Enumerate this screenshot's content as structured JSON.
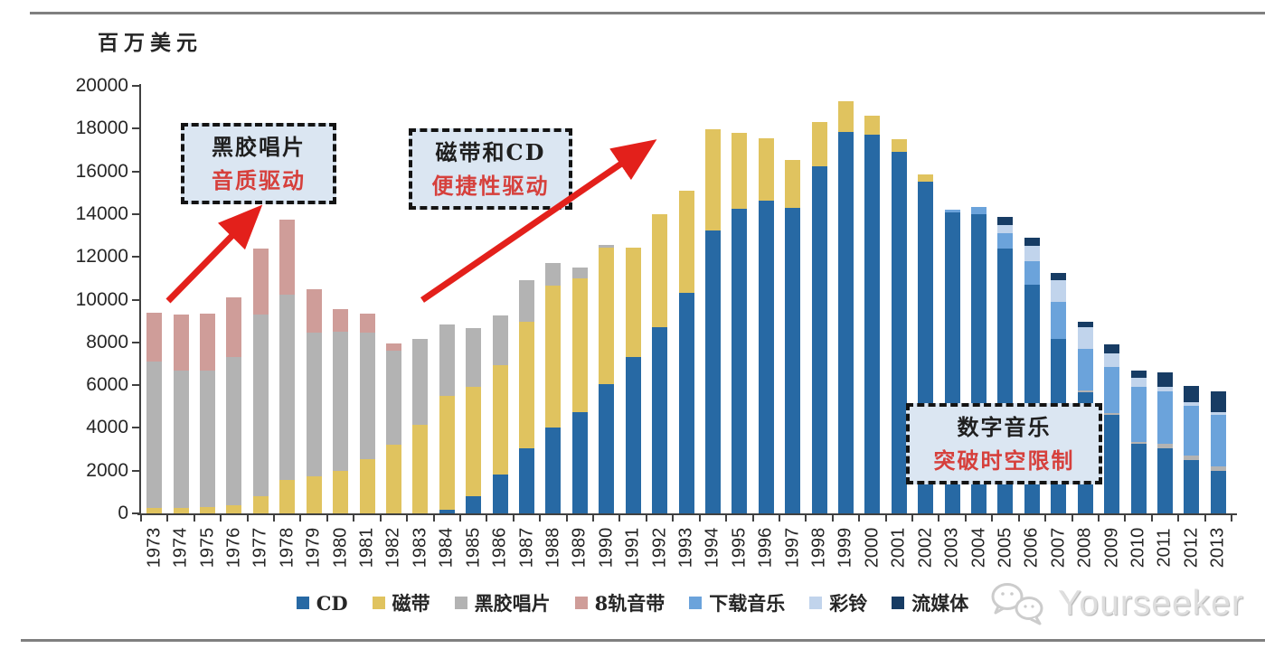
{
  "unit_label": "百万美元",
  "watermark": {
    "text": "Yourseeker"
  },
  "annotations": [
    {
      "line1": "黑胶唱片",
      "line2": "音质驱动"
    },
    {
      "line1": "磁带和CD",
      "line2": "便捷性驱动"
    },
    {
      "line1": "数字音乐",
      "line2": "突破时空限制"
    }
  ],
  "colors": {
    "axis": "#404040",
    "callout_bg": "#dbe6f2",
    "callout_red": "#d6403c",
    "arrow_red": "#e3201b"
  },
  "chart_data": {
    "type": "bar",
    "stacked": true,
    "title": "",
    "xlabel": "",
    "ylabel": "百万美元",
    "ylim": [
      0,
      20000
    ],
    "ytick_step": 2000,
    "grid": false,
    "legend_position": "bottom",
    "categories": [
      "1973",
      "1974",
      "1975",
      "1976",
      "1977",
      "1978",
      "1979",
      "1980",
      "1981",
      "1982",
      "1983",
      "1984",
      "1985",
      "1986",
      "1987",
      "1988",
      "1989",
      "1990",
      "1991",
      "1992",
      "1993",
      "1994",
      "1995",
      "1996",
      "1997",
      "1998",
      "1999",
      "2000",
      "2001",
      "2002",
      "2003",
      "2004",
      "2005",
      "2006",
      "2007",
      "2008",
      "2009",
      "2010",
      "2011",
      "2012",
      "2013"
    ],
    "series": [
      {
        "name": "CD",
        "color": "#2769a4",
        "values": [
          0,
          0,
          0,
          0,
          0,
          0,
          0,
          0,
          0,
          0,
          0,
          150,
          800,
          1800,
          3050,
          4000,
          4750,
          6050,
          7300,
          8700,
          10300,
          13250,
          14250,
          14650,
          14300,
          16250,
          17850,
          17700,
          16900,
          15500,
          14100,
          14000,
          12400,
          10700,
          8150,
          5650,
          4600,
          3250,
          3050,
          2500,
          2000
        ]
      },
      {
        "name": "磁带",
        "color": "#e0c35f",
        "values": [
          250,
          250,
          300,
          400,
          800,
          1550,
          1750,
          2000,
          2550,
          3200,
          4150,
          5350,
          5100,
          5150,
          5900,
          6650,
          6250,
          6400,
          5150,
          5300,
          4800,
          4700,
          3550,
          2900,
          2250,
          2050,
          1450,
          900,
          600,
          350,
          0,
          0,
          0,
          0,
          0,
          0,
          0,
          0,
          0,
          0,
          0
        ]
      },
      {
        "name": "黑胶唱片",
        "color": "#b3b3b3",
        "values": [
          6850,
          6450,
          6400,
          6900,
          8500,
          8700,
          6700,
          6500,
          5900,
          4400,
          4000,
          3350,
          2750,
          2300,
          1950,
          1050,
          500,
          100,
          0,
          0,
          0,
          0,
          0,
          0,
          0,
          0,
          0,
          0,
          0,
          0,
          0,
          0,
          0,
          0,
          0,
          100,
          100,
          100,
          200,
          200,
          200
        ]
      },
      {
        "name": "8轨音带",
        "color": "#cf9d99",
        "values": [
          2300,
          2600,
          2650,
          2800,
          3100,
          3500,
          2050,
          1050,
          900,
          350,
          0,
          0,
          0,
          0,
          0,
          0,
          0,
          0,
          0,
          0,
          0,
          0,
          0,
          0,
          0,
          0,
          0,
          0,
          0,
          0,
          0,
          0,
          0,
          0,
          0,
          0,
          0,
          0,
          0,
          0,
          0
        ]
      },
      {
        "name": "下载音乐",
        "color": "#6ba3db",
        "values": [
          0,
          0,
          0,
          0,
          0,
          0,
          0,
          0,
          0,
          0,
          0,
          0,
          0,
          0,
          0,
          0,
          0,
          0,
          0,
          0,
          0,
          0,
          0,
          0,
          0,
          0,
          0,
          0,
          0,
          0,
          100,
          350,
          700,
          1100,
          1750,
          1950,
          2150,
          2550,
          2450,
          2350,
          2400
        ]
      },
      {
        "name": "彩铃",
        "color": "#c1d4ec",
        "values": [
          0,
          0,
          0,
          0,
          0,
          0,
          0,
          0,
          0,
          0,
          0,
          0,
          0,
          0,
          0,
          0,
          0,
          0,
          0,
          0,
          0,
          0,
          0,
          0,
          0,
          0,
          0,
          0,
          0,
          0,
          0,
          0,
          400,
          700,
          1000,
          1000,
          650,
          450,
          200,
          150,
          150
        ]
      },
      {
        "name": "流媒体",
        "color": "#173c64",
        "values": [
          0,
          0,
          0,
          0,
          0,
          0,
          0,
          0,
          0,
          0,
          0,
          0,
          0,
          0,
          0,
          0,
          0,
          0,
          0,
          0,
          0,
          0,
          0,
          0,
          0,
          0,
          0,
          0,
          0,
          0,
          0,
          0,
          350,
          400,
          350,
          250,
          400,
          350,
          700,
          750,
          950
        ]
      }
    ]
  }
}
